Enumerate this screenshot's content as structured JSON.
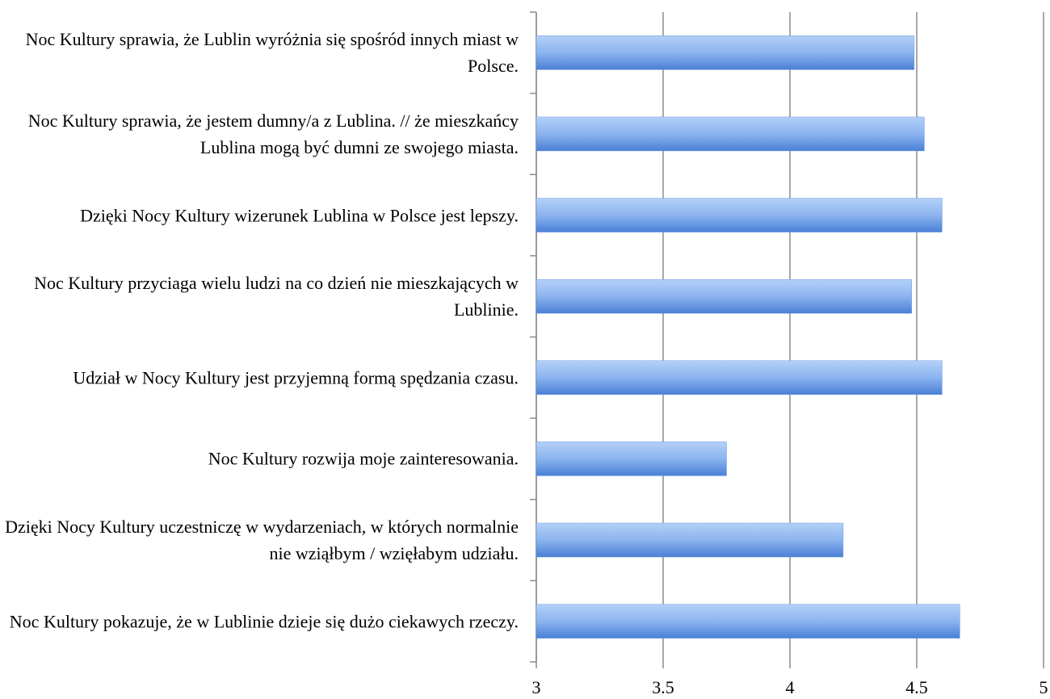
{
  "chart_data": {
    "type": "bar",
    "orientation": "horizontal",
    "categories": [
      "Noc Kultury sprawia, że Lublin wyróżnia się spośród innych miast w Polsce.",
      "Noc Kultury sprawia, że jestem dumny/a z Lublina. // że mieszkańcy Lublina mogą być dumni ze swojego miasta.",
      "Dzięki Nocy Kultury wizerunek Lublina w Polsce jest lepszy.",
      "Noc Kultury przyciaga wielu ludzi na co dzień nie mieszkających w Lublinie.",
      "Udział w Nocy Kultury jest przyjemną formą spędzania czasu.",
      "Noc Kultury rozwija moje zainteresowania.",
      "Dzięki Nocy Kultury uczestniczę w wydarzeniach, w których normalnie nie wziąłbym / wzięłabym udziału.",
      "Noc Kultury pokazuje, że w Lublinie dzieje się dużo ciekawych rzeczy."
    ],
    "values": [
      4.49,
      4.53,
      4.6,
      4.48,
      4.6,
      3.75,
      4.21,
      4.67
    ],
    "color": "#6b9be6",
    "xlim": [
      3,
      5
    ],
    "xticks": [
      3,
      3.5,
      4,
      4.5,
      5
    ],
    "grid": true
  }
}
